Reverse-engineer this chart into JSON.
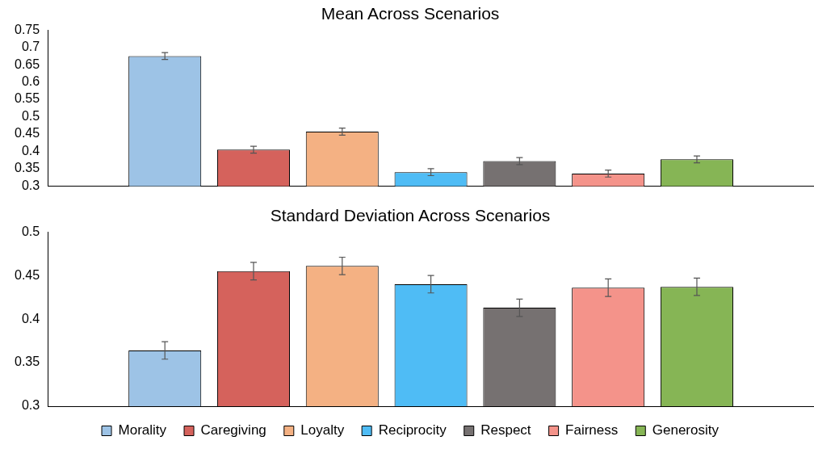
{
  "chart_data": [
    {
      "type": "bar",
      "title": "Mean Across Scenarios",
      "categories": [
        null
      ],
      "tick_labels": "y",
      "legend": false,
      "ylim": [
        0.3,
        0.75
      ],
      "yticks": [
        0.3,
        0.35,
        0.4,
        0.45,
        0.5,
        0.55,
        0.6,
        0.65,
        0.7,
        0.75
      ],
      "series": [
        {
          "color": "#9dc3e6",
          "values": [
            0.675
          ],
          "errors": [
            0.01
          ]
        },
        {
          "color": "#d5625c",
          "values": [
            0.405
          ],
          "errors": [
            0.01
          ]
        },
        {
          "color": "#f4b183",
          "values": [
            0.457
          ],
          "errors": [
            0.01
          ]
        },
        {
          "color": "#4fbcf5",
          "values": [
            0.34
          ],
          "errors": [
            0.01
          ]
        },
        {
          "color": "#767171",
          "values": [
            0.372
          ],
          "errors": [
            0.01
          ]
        },
        {
          "color": "#f4938a",
          "values": [
            0.336
          ],
          "errors": [
            0.01
          ]
        },
        {
          "color": "#86b555",
          "values": [
            0.377
          ],
          "errors": [
            0.01
          ]
        }
      ]
    },
    {
      "type": "bar",
      "title": "Standard Deviation Across Scenarios",
      "categories": [
        null
      ],
      "tick_labels": "y",
      "legend": "bottom",
      "ylim": [
        0.3,
        0.5
      ],
      "yticks": [
        0.3,
        0.35,
        0.4,
        0.45,
        0.5
      ],
      "series": [
        {
          "name": "Morality",
          "color": "#9dc3e6",
          "values": [
            0.364
          ],
          "errors": [
            0.01
          ]
        },
        {
          "name": "Caregiving",
          "color": "#d5625c",
          "values": [
            0.455
          ],
          "errors": [
            0.01
          ]
        },
        {
          "name": "Loyalty",
          "color": "#f4b183",
          "values": [
            0.461
          ],
          "errors": [
            0.01
          ]
        },
        {
          "name": "Reciprocity",
          "color": "#4fbcf5",
          "values": [
            0.44
          ],
          "errors": [
            0.01
          ]
        },
        {
          "name": "Respect",
          "color": "#767171",
          "values": [
            0.413
          ],
          "errors": [
            0.01
          ]
        },
        {
          "name": "Fairness",
          "color": "#f4938a",
          "values": [
            0.436
          ],
          "errors": [
            0.01
          ]
        },
        {
          "name": "Generosity",
          "color": "#86b555",
          "values": [
            0.437
          ],
          "errors": [
            0.01
          ]
        }
      ]
    }
  ]
}
